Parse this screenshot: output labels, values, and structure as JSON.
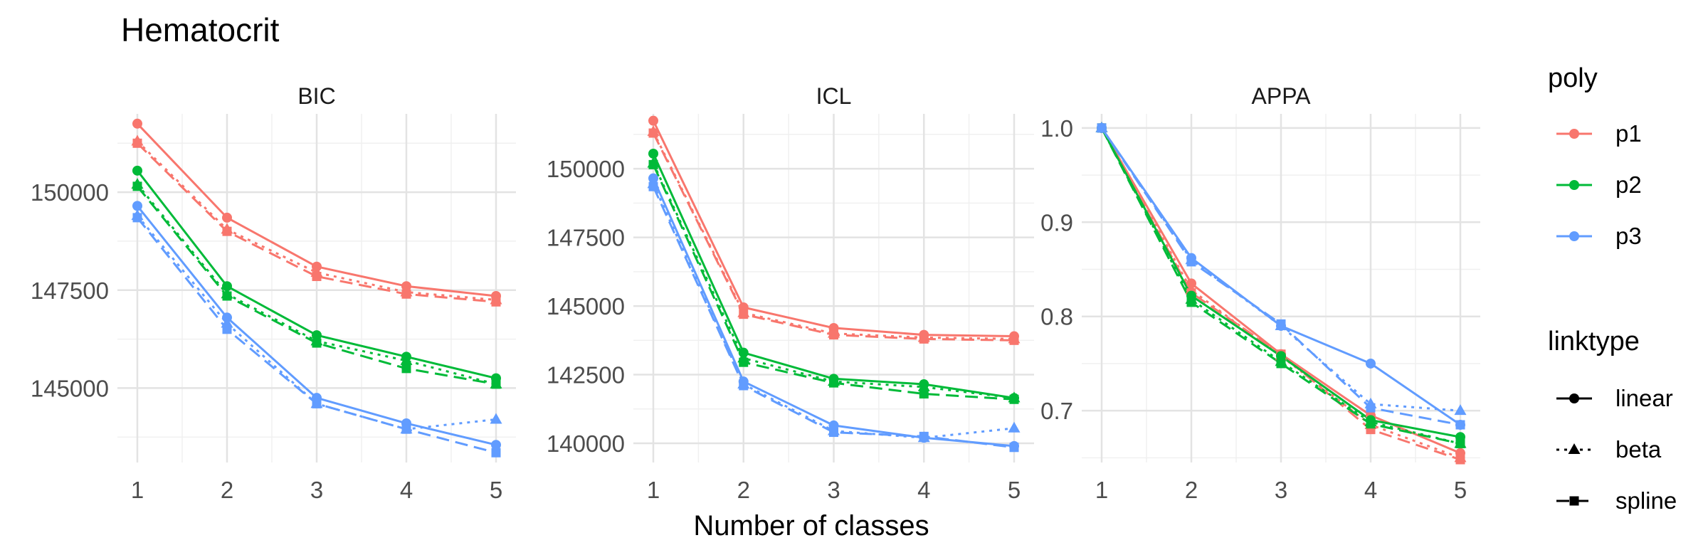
{
  "chart_data": {
    "type": "line",
    "title": "Hematocrit",
    "xlabel": "Number of classes",
    "x": [
      1,
      2,
      3,
      4,
      5
    ],
    "colors": {
      "p1": "#F8766D",
      "p2": "#00BA38",
      "p3": "#619CFF"
    },
    "legend": {
      "placement": "right",
      "poly": {
        "title": "poly",
        "items": [
          "p1",
          "p2",
          "p3"
        ]
      },
      "linktype": {
        "title": "linktype",
        "items": [
          "linear",
          "beta",
          "spline"
        ]
      }
    },
    "grid": true,
    "panels": [
      {
        "title": "BIC",
        "ylim": [
          143100,
          152000
        ],
        "yticks": [
          145000,
          147500,
          150000
        ],
        "ytick_labels": [
          "145000",
          "147500",
          "150000"
        ],
        "series": [
          {
            "poly": "p1",
            "linktype": "linear",
            "values": [
              151750,
              149350,
              148100,
              147600,
              147350
            ]
          },
          {
            "poly": "p1",
            "linktype": "beta",
            "values": [
              151300,
              149050,
              147950,
              147450,
              147250
            ]
          },
          {
            "poly": "p1",
            "linktype": "spline",
            "values": [
              151250,
              149000,
              147850,
              147400,
              147200
            ]
          },
          {
            "poly": "p2",
            "linktype": "linear",
            "values": [
              150550,
              147600,
              146350,
              145800,
              145250
            ]
          },
          {
            "poly": "p2",
            "linktype": "beta",
            "values": [
              150200,
              147400,
              146200,
              145700,
              145100
            ]
          },
          {
            "poly": "p2",
            "linktype": "spline",
            "values": [
              150150,
              147350,
              146150,
              145500,
              145100
            ]
          },
          {
            "poly": "p3",
            "linktype": "linear",
            "values": [
              149650,
              146800,
              144750,
              144100,
              143550
            ]
          },
          {
            "poly": "p3",
            "linktype": "beta",
            "values": [
              149400,
              146650,
              144600,
              143950,
              144200
            ]
          },
          {
            "poly": "p3",
            "linktype": "spline",
            "values": [
              149350,
              146500,
              144600,
              143950,
              143350
            ]
          }
        ]
      },
      {
        "title": "ICL",
        "ylim": [
          139300,
          152000
        ],
        "yticks": [
          140000,
          142500,
          145000,
          147500,
          150000
        ],
        "ytick_labels": [
          "140000",
          "142500",
          "145000",
          "147500",
          "150000"
        ],
        "series": [
          {
            "poly": "p1",
            "linktype": "linear",
            "values": [
              151750,
              144950,
              144200,
              143950,
              143900
            ]
          },
          {
            "poly": "p1",
            "linktype": "beta",
            "values": [
              151350,
              144750,
              144000,
              143850,
              143800
            ]
          },
          {
            "poly": "p1",
            "linktype": "spline",
            "values": [
              151300,
              144700,
              143950,
              143800,
              143750
            ]
          },
          {
            "poly": "p2",
            "linktype": "linear",
            "values": [
              150550,
              143300,
              142350,
              142150,
              141650
            ]
          },
          {
            "poly": "p2",
            "linktype": "beta",
            "values": [
              150200,
              143100,
              142250,
              142050,
              141650
            ]
          },
          {
            "poly": "p2",
            "linktype": "spline",
            "values": [
              150150,
              142950,
              142200,
              141800,
              141600
            ]
          },
          {
            "poly": "p3",
            "linktype": "linear",
            "values": [
              149650,
              142250,
              140650,
              140200,
              139900
            ]
          },
          {
            "poly": "p3",
            "linktype": "beta",
            "values": [
              149450,
              142150,
              140450,
              140200,
              140550
            ]
          },
          {
            "poly": "p3",
            "linktype": "spline",
            "values": [
              149350,
              142100,
              140400,
              140250,
              139850
            ]
          }
        ]
      },
      {
        "title": "APPA",
        "ylim": [
          0.645,
          1.015
        ],
        "yticks": [
          0.7,
          0.8,
          0.9,
          1.0
        ],
        "ytick_labels": [
          "0.7",
          "0.8",
          "0.9",
          "1.0"
        ],
        "series": [
          {
            "poly": "p1",
            "linktype": "linear",
            "values": [
              1.0,
              0.835,
              0.76,
              0.695,
              0.655
            ]
          },
          {
            "poly": "p1",
            "linktype": "beta",
            "values": [
              1.0,
              0.828,
              0.758,
              0.685,
              0.65
            ]
          },
          {
            "poly": "p1",
            "linktype": "spline",
            "values": [
              1.0,
              0.825,
              0.76,
              0.68,
              0.648
            ]
          },
          {
            "poly": "p2",
            "linktype": "linear",
            "values": [
              1.0,
              0.822,
              0.758,
              0.69,
              0.672
            ]
          },
          {
            "poly": "p2",
            "linktype": "beta",
            "values": [
              1.0,
              0.818,
              0.752,
              0.688,
              0.665
            ]
          },
          {
            "poly": "p2",
            "linktype": "spline",
            "values": [
              1.0,
              0.815,
              0.75,
              0.686,
              0.665
            ]
          },
          {
            "poly": "p3",
            "linktype": "linear",
            "values": [
              1.0,
              0.862,
              0.79,
              0.75,
              0.685
            ]
          },
          {
            "poly": "p3",
            "linktype": "beta",
            "values": [
              1.0,
              0.86,
              0.79,
              0.707,
              0.7
            ]
          },
          {
            "poly": "p3",
            "linktype": "spline",
            "values": [
              1.0,
              0.858,
              0.792,
              0.703,
              0.685
            ]
          }
        ]
      }
    ]
  }
}
